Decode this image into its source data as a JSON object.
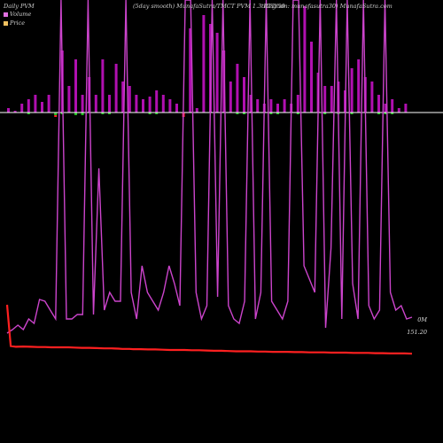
{
  "header": {
    "left": "Daily PVM",
    "center": "(5day smooth) MunafaSutra/TMCT PVM 1.3 RTIY50",
    "right": "telegram: munafasutra30) MunafaSutra.com"
  },
  "legend": [
    {
      "label": "Volume",
      "color": "#e070e0"
    },
    {
      "label": "Price",
      "color": "#f0c060"
    }
  ],
  "labels": {
    "pvm_last": "0M",
    "price_last": "151.20"
  },
  "colors": {
    "pvm_line": "#cc44cc",
    "price_line": "#ff2020",
    "bar_up": "#b010b0",
    "bar_down": "#ff2020",
    "bar_neg": "#20c020"
  },
  "chart_data": {
    "type": "bar+line",
    "bars": [
      {
        "h": 5,
        "c": "up"
      },
      {
        "h": 2,
        "c": "up"
      },
      {
        "h": 10,
        "c": "up"
      },
      {
        "h": 15,
        "c": "up"
      },
      {
        "h": 20,
        "c": "up"
      },
      {
        "h": 12,
        "c": "up"
      },
      {
        "h": 20,
        "c": "up"
      },
      {
        "h": -5,
        "c": "down"
      },
      {
        "h": 70,
        "c": "up"
      },
      {
        "h": 30,
        "c": "up"
      },
      {
        "h": 60,
        "c": "up"
      },
      {
        "h": 20,
        "c": "up"
      },
      {
        "h": 40,
        "c": "up"
      },
      {
        "h": 20,
        "c": "up"
      },
      {
        "h": 60,
        "c": "up"
      },
      {
        "h": 20,
        "c": "up"
      },
      {
        "h": 55,
        "c": "up"
      },
      {
        "h": 35,
        "c": "up"
      },
      {
        "h": 30,
        "c": "up"
      },
      {
        "h": 20,
        "c": "up"
      },
      {
        "h": 15,
        "c": "up"
      },
      {
        "h": 18,
        "c": "up"
      },
      {
        "h": 25,
        "c": "up"
      },
      {
        "h": 20,
        "c": "up"
      },
      {
        "h": 15,
        "c": "up"
      },
      {
        "h": 10,
        "c": "up"
      },
      {
        "h": -5,
        "c": "down"
      },
      {
        "h": 95,
        "c": "up"
      },
      {
        "h": 5,
        "c": "up"
      },
      {
        "h": 110,
        "c": "up"
      },
      {
        "h": 100,
        "c": "up"
      },
      {
        "h": 90,
        "c": "up"
      },
      {
        "h": 70,
        "c": "up"
      },
      {
        "h": 35,
        "c": "up"
      },
      {
        "h": 55,
        "c": "up"
      },
      {
        "h": 40,
        "c": "up"
      },
      {
        "h": 20,
        "c": "up"
      },
      {
        "h": 15,
        "c": "up"
      },
      {
        "h": 10,
        "c": "up"
      },
      {
        "h": 15,
        "c": "up"
      },
      {
        "h": 10,
        "c": "up"
      },
      {
        "h": 15,
        "c": "up"
      },
      {
        "h": 10,
        "c": "up"
      },
      {
        "h": 20,
        "c": "up"
      },
      {
        "h": 120,
        "c": "up"
      },
      {
        "h": 80,
        "c": "up"
      },
      {
        "h": 45,
        "c": "up"
      },
      {
        "h": 30,
        "c": "up"
      },
      {
        "h": 30,
        "c": "up"
      },
      {
        "h": 35,
        "c": "up"
      },
      {
        "h": 25,
        "c": "up"
      },
      {
        "h": 50,
        "c": "up"
      },
      {
        "h": 60,
        "c": "up"
      },
      {
        "h": 40,
        "c": "up"
      },
      {
        "h": 35,
        "c": "up"
      },
      {
        "h": 20,
        "c": "up"
      },
      {
        "h": 10,
        "c": "up"
      },
      {
        "h": 15,
        "c": "up"
      },
      {
        "h": 5,
        "c": "up"
      },
      {
        "h": 10,
        "c": "up"
      }
    ],
    "neg_bars": [
      0,
      0,
      0,
      2,
      0,
      0,
      0,
      3,
      2,
      0,
      3,
      3,
      0,
      0,
      2,
      2,
      0,
      0,
      0,
      0,
      0,
      2,
      2,
      0,
      0,
      0,
      0,
      0,
      0,
      0,
      0,
      0,
      0,
      0,
      2,
      2,
      0,
      0,
      0,
      2,
      2,
      0,
      0,
      2,
      0,
      0,
      0,
      2,
      0,
      2,
      0,
      2,
      0,
      0,
      0,
      2,
      2,
      2,
      0,
      0
    ],
    "pvm": [
      376,
      372,
      367,
      372,
      360,
      365,
      338,
      340,
      350,
      360,
      0,
      360,
      360,
      355,
      355,
      0,
      355,
      190,
      350,
      330,
      340,
      340,
      0,
      330,
      360,
      300,
      330,
      340,
      350,
      330,
      300,
      320,
      345,
      0,
      0,
      330,
      360,
      345,
      0,
      335,
      0,
      345,
      360,
      365,
      340,
      0,
      360,
      330,
      0,
      340,
      350,
      360,
      340,
      0,
      0,
      300,
      315,
      330,
      0,
      370,
      280,
      0,
      360,
      0,
      320,
      360,
      0,
      345,
      360,
      350,
      0,
      330,
      350,
      345,
      360,
      358
    ],
    "price": [
      100,
      65,
      62,
      63,
      62,
      61,
      61,
      60,
      60,
      60,
      59,
      58,
      58,
      57,
      56,
      56,
      55,
      54,
      54,
      54,
      53,
      53,
      53,
      52,
      52,
      51,
      50,
      50,
      50,
      49,
      49,
      48,
      47,
      47,
      46,
      45,
      45,
      45,
      44,
      44,
      43,
      43,
      43,
      42,
      42,
      41,
      41,
      41,
      40,
      40,
      40,
      39,
      39,
      39,
      38,
      38,
      37,
      37,
      37,
      36
    ],
    "price_x": [
      8,
      13,
      20,
      30,
      40,
      50,
      60,
      68,
      80,
      92,
      100,
      110,
      120,
      130,
      140,
      150,
      160,
      165,
      170,
      175,
      180,
      185,
      190,
      200,
      210,
      220,
      230,
      240,
      250,
      260,
      270,
      280,
      290,
      300,
      310,
      320,
      330,
      340,
      350,
      360,
      370,
      380,
      390,
      400,
      410,
      420,
      430,
      440,
      450,
      460,
      470,
      480,
      490,
      500,
      510,
      520,
      530,
      540,
      550,
      560
    ]
  }
}
